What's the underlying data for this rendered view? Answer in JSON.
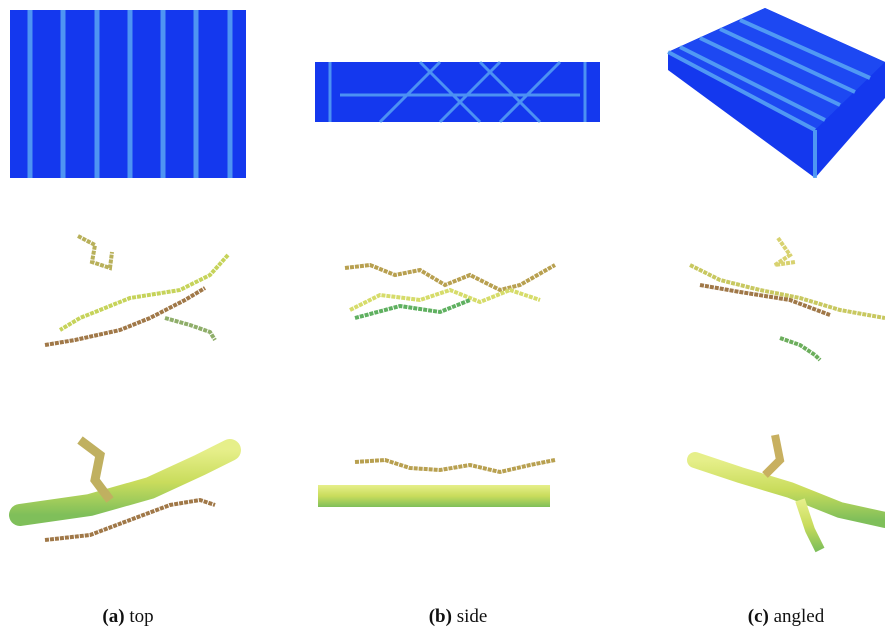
{
  "panels": [
    {
      "label": "(a)",
      "caption": "top"
    },
    {
      "label": "(b)",
      "caption": "side"
    },
    {
      "label": "(c)",
      "caption": "angled"
    }
  ]
}
